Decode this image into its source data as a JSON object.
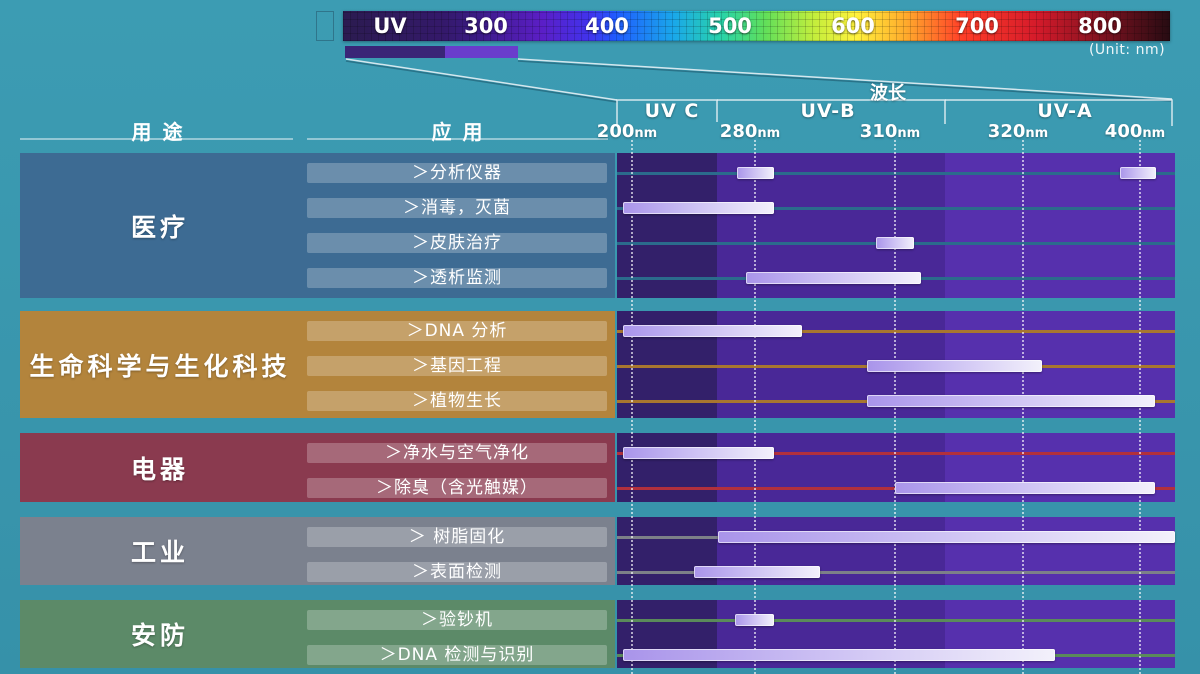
{
  "spectrum": {
    "labels": [
      "UV",
      "300",
      "400",
      "500",
      "600",
      "700",
      "800"
    ],
    "unit_note": "(Unit: nm)"
  },
  "headers": {
    "purpose": "用 途",
    "application": "应 用"
  },
  "colors": {
    "page_background": "#3a99b0",
    "band_uvc": "#33206a",
    "band_uvb": "#492897",
    "band_uva": "#5630ad",
    "bar_dark": "#a994ea",
    "bar_light": "#f3f1fb",
    "uv_range_dark": "#3a2577",
    "uv_range_light": "#6a3ccc"
  },
  "chart_data": {
    "type": "bar",
    "orientation": "horizontal",
    "xlabel": "波长",
    "x_unit": "nm",
    "x_ticks": [
      200,
      280,
      310,
      320,
      400
    ],
    "x_scale": "non-linear",
    "grid": true,
    "bands": [
      "UV C",
      "UV-B",
      "UV-A"
    ],
    "groups": [
      {
        "name": "医疗",
        "color": "#3d6b93",
        "track_color": "#2b6b8c",
        "items": [
          {
            "label": "＞分析仪器",
            "ranges": [
              [
                268,
                284
              ],
              [
                386,
                411
              ]
            ]
          },
          {
            "label": "＞消毒，灭菌",
            "ranges": [
              [
                194,
                284
              ]
            ]
          },
          {
            "label": "＞皮肤治疗",
            "ranges": [
              [
                306,
                311.5
              ]
            ]
          },
          {
            "label": "＞透析监测",
            "ranges": [
              [
                274,
                312
              ]
            ]
          }
        ]
      },
      {
        "name": "生命科学与生化科技",
        "color": "#b3843c",
        "track_color": "#a8762f",
        "items": [
          {
            "label": "＞DNA 分析",
            "ranges": [
              [
                194,
                290
              ]
            ]
          },
          {
            "label": "＞基因工程",
            "ranges": [
              [
                304,
                333
              ]
            ]
          },
          {
            "label": "＞植物生长",
            "ranges": [
              [
                304,
                410
              ]
            ]
          }
        ]
      },
      {
        "name": "电器",
        "color": "#8a3a4f",
        "track_color": "#b2303c",
        "items": [
          {
            "label": "＞净水与空气净化",
            "ranges": [
              [
                194,
                284
              ]
            ]
          },
          {
            "label": "＞除臭（含光触媒）",
            "ranges": [
              [
                310,
                410
              ]
            ]
          }
        ]
      },
      {
        "name": "工业",
        "color": "#7b818e",
        "track_color": "#7d8088",
        "items": [
          {
            "label": "＞ 树脂固化",
            "ranges": [
              [
                256,
                424
              ]
            ]
          },
          {
            "label": "＞表面检测",
            "ranges": [
              [
                240,
                294
              ]
            ]
          }
        ]
      },
      {
        "name": "安防",
        "color": "#5c8a68",
        "track_color": "#5a8a5a",
        "items": [
          {
            "label": "＞验钞机",
            "ranges": [
              [
                267,
                284
              ]
            ]
          },
          {
            "label": "＞DNA 检测与识别",
            "ranges": [
              [
                194,
                342
              ]
            ]
          }
        ]
      }
    ]
  }
}
